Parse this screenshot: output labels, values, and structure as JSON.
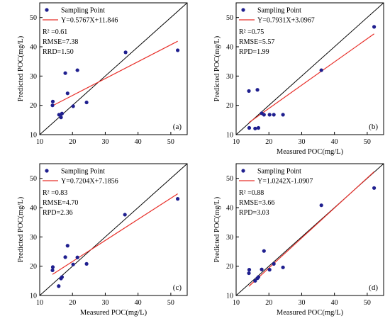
{
  "chart_data": [
    {
      "type": "scatter",
      "panel_label": "(a)",
      "xlabel": "Measured POC(mg/L)",
      "ylabel": "Predicted POC(mg/L)",
      "xlim": [
        10,
        55
      ],
      "ylim": [
        10,
        55
      ],
      "xticks": [
        10,
        20,
        30,
        40,
        50
      ],
      "yticks": [
        10,
        20,
        30,
        40,
        50
      ],
      "legend": "top-left",
      "legend_entries": [
        "Sampling Point",
        "Y=0.5767X+11.846"
      ],
      "stats": [
        "R² =0.61",
        "RMSE=7.38",
        "RRD=1.50"
      ],
      "fit": {
        "slope": 0.5767,
        "intercept": 11.846
      },
      "series": [
        {
          "name": "Sampling Point",
          "color": "#1f1f8f",
          "x": [
            14.0,
            13.9,
            15.9,
            16.5,
            16.8,
            17.8,
            18.5,
            20.2,
            21.5,
            24.3,
            36.2,
            52.1
          ],
          "y": [
            21.3,
            20.0,
            16.8,
            15.9,
            17.2,
            31.0,
            24.1,
            19.7,
            32.0,
            21.0,
            38.1,
            38.8
          ]
        }
      ],
      "show_x_title": false,
      "show_y_title": true
    },
    {
      "type": "scatter",
      "panel_label": "(b)",
      "xlabel": "Measured POC(mg/L)",
      "ylabel": "Predicted POC(mg/L)",
      "xlim": [
        10,
        55
      ],
      "ylim": [
        10,
        55
      ],
      "xticks": [
        10,
        20,
        30,
        40,
        50
      ],
      "yticks": [
        10,
        20,
        30,
        40,
        50
      ],
      "legend": "top-left",
      "legend_entries": [
        "Sampling Point",
        "Y=0.7931X+3.0967"
      ],
      "stats": [
        "R² =0.75",
        "RMSE=5.57",
        "RPD=1.99"
      ],
      "fit": {
        "slope": 0.7931,
        "intercept": 3.0967
      },
      "series": [
        {
          "name": "Sampling Point",
          "color": "#1f1f8f",
          "x": [
            13.9,
            14.0,
            15.8,
            16.5,
            16.8,
            17.8,
            18.5,
            20.2,
            21.5,
            24.3,
            36.0,
            52.1
          ],
          "y": [
            24.9,
            12.3,
            12.1,
            25.3,
            12.3,
            17.3,
            16.8,
            16.8,
            16.8,
            16.8,
            32.0,
            46.8
          ]
        }
      ],
      "show_x_title": true,
      "show_y_title": true
    },
    {
      "type": "scatter",
      "panel_label": "(c)",
      "xlabel": "Measured POC(mg/L)",
      "ylabel": "Predicted POC(mg/L)",
      "xlim": [
        10,
        55
      ],
      "ylim": [
        10,
        55
      ],
      "xticks": [
        10,
        20,
        30,
        40,
        50
      ],
      "yticks": [
        10,
        20,
        30,
        40,
        50
      ],
      "legend": "top-left",
      "legend_entries": [
        "Sampling Point",
        "Y=0.7204X+7.1856"
      ],
      "stats": [
        "R² =0.83",
        "RMSE=4.70",
        "RPD=2.36"
      ],
      "fit": {
        "slope": 0.7204,
        "intercept": 7.1856
      },
      "series": [
        {
          "name": "Sampling Point",
          "color": "#1f1f8f",
          "x": [
            14.0,
            13.9,
            15.8,
            16.5,
            16.8,
            17.8,
            18.5,
            20.2,
            21.5,
            24.3,
            36.0,
            52.1
          ],
          "y": [
            19.7,
            18.6,
            13.2,
            15.8,
            16.3,
            23.1,
            27.0,
            20.6,
            23.0,
            20.8,
            37.6,
            43.0
          ]
        }
      ],
      "show_x_title": true,
      "show_y_title": true
    },
    {
      "type": "scatter",
      "panel_label": "(d)",
      "xlabel": "Measured POC(mg/L)",
      "ylabel": "Predicted POC(mg/L)",
      "xlim": [
        10,
        55
      ],
      "ylim": [
        10,
        55
      ],
      "xticks": [
        10,
        20,
        30,
        40,
        50
      ],
      "yticks": [
        10,
        20,
        30,
        40,
        50
      ],
      "legend": "top-left",
      "legend_entries": [
        "Sampling Point",
        "Y=1.0242X-1.0907"
      ],
      "stats": [
        "R² =0.88",
        "RMSE=3.66",
        "RPD=3.03"
      ],
      "fit": {
        "slope": 1.0242,
        "intercept": -1.0907
      },
      "series": [
        {
          "name": "Sampling Point",
          "color": "#1f1f8f",
          "x": [
            14.0,
            13.9,
            15.8,
            16.5,
            16.8,
            17.8,
            18.5,
            20.2,
            21.5,
            24.3,
            36.0,
            52.1
          ],
          "y": [
            18.8,
            17.6,
            15.0,
            15.9,
            16.3,
            18.9,
            25.2,
            18.8,
            20.8,
            19.6,
            40.8,
            46.7
          ]
        }
      ],
      "show_x_title": true,
      "show_y_title": true
    }
  ]
}
